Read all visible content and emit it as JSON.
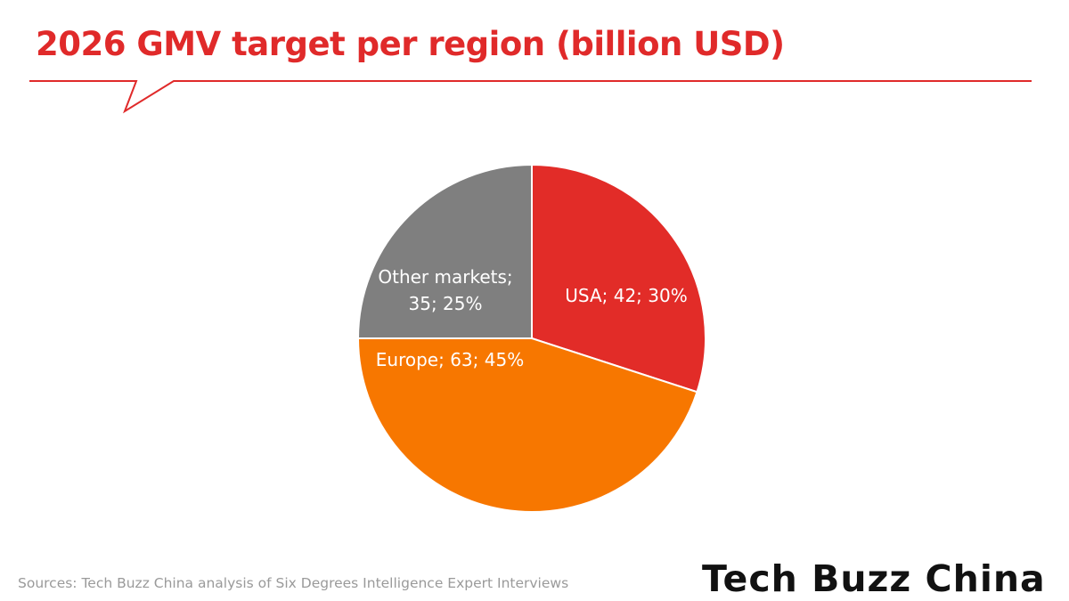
{
  "page": {
    "title": "2026 GMV target per region (billion USD)",
    "source": "Sources: Tech Buzz China analysis of Six Degrees Intelligence Expert Interviews",
    "logo": "Tech Buzz China"
  },
  "colors": {
    "title": "#e02a2a",
    "title_line": "#e02a2a",
    "usa": "#e22c28",
    "europe": "#f77700",
    "other": "#7f7f7f",
    "label_text": "#ffffff"
  },
  "chart_data": {
    "type": "pie",
    "title": "2026 GMV target per region (billion USD)",
    "start": "12 o'clock, clockwise",
    "slices": [
      {
        "name": "USA",
        "value": 42,
        "percent": 30,
        "color": "#e22c28",
        "label_lines": [
          "USA; 42; 30%"
        ]
      },
      {
        "name": "Europe",
        "value": 63,
        "percent": 45,
        "color": "#f77700",
        "label_lines": [
          "Europe; 63; 45%"
        ]
      },
      {
        "name": "Other markets",
        "value": 35,
        "percent": 25,
        "color": "#7f7f7f",
        "label_lines": [
          "Other markets;",
          "35; 25%"
        ]
      }
    ]
  }
}
